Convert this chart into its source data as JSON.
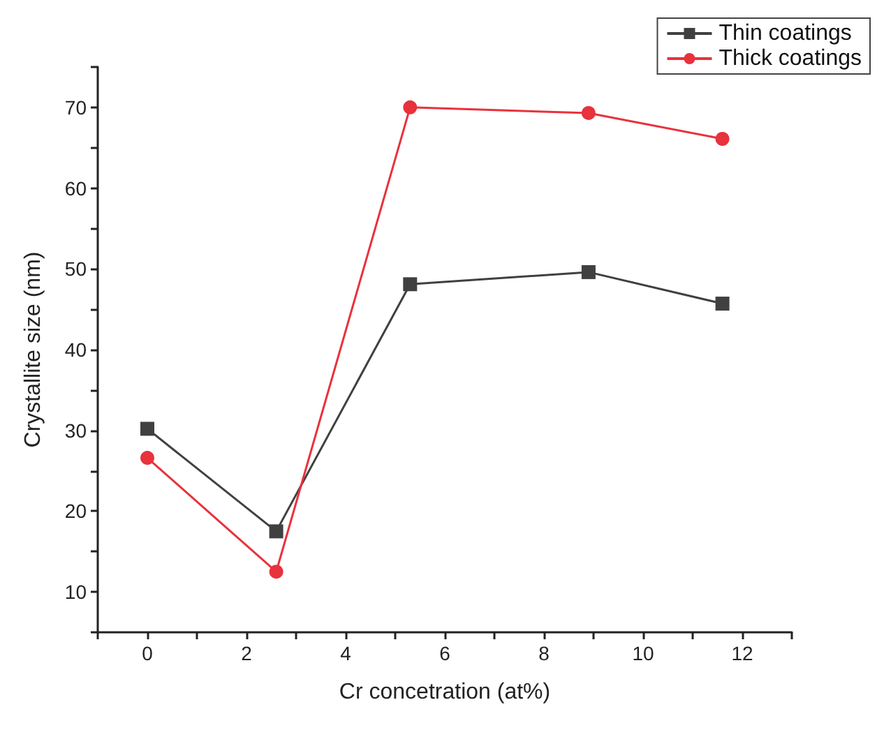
{
  "chart_data": {
    "type": "line",
    "xlabel": "Cr concetration (at%)",
    "ylabel": "Crystallite size (nm)",
    "x": [
      0,
      2.6,
      5.3,
      8.9,
      11.6
    ],
    "series": [
      {
        "name": "Thin coatings",
        "color": "#404040",
        "marker": "square",
        "values": [
          30.2,
          17.5,
          48.1,
          49.6,
          45.7
        ]
      },
      {
        "name": "Thick coatings",
        "color": "#e8323c",
        "marker": "circle",
        "values": [
          26.6,
          12.5,
          70.0,
          69.3,
          66.1
        ]
      }
    ],
    "xlim": [
      -1,
      13
    ],
    "xticks": [
      {
        "value": -1,
        "label": null
      },
      0,
      {
        "value": 1,
        "label": null
      },
      2,
      {
        "value": 3,
        "label": null
      },
      4,
      {
        "value": 5,
        "label": null
      },
      6,
      {
        "value": 7,
        "label": null
      },
      8,
      {
        "value": 9,
        "label": null
      },
      10,
      {
        "value": 11,
        "label": null
      },
      12,
      {
        "value": 13,
        "label": null
      }
    ],
    "ylim": [
      5,
      75
    ],
    "yticks": [
      {
        "value": 5,
        "label": null
      },
      10,
      {
        "value": 15,
        "label": null
      },
      20,
      {
        "value": 25,
        "label": null
      },
      30,
      {
        "value": 35,
        "label": null
      },
      40,
      {
        "value": 45,
        "label": null
      },
      50,
      {
        "value": 55,
        "label": null
      },
      60,
      {
        "value": 65,
        "label": null
      },
      70,
      {
        "value": 75,
        "label": null
      }
    ],
    "grid": false,
    "legend": "top right",
    "line_style": "solid"
  }
}
